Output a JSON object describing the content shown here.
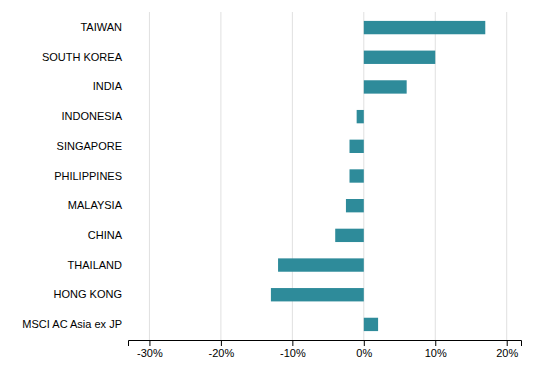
{
  "chart_data": {
    "type": "bar",
    "orientation": "horizontal",
    "categories": [
      "TAIWAN",
      "SOUTH KOREA",
      "INDIA",
      "INDONESIA",
      "SINGAPORE",
      "PHILIPPINES",
      "MALAYSIA",
      "CHINA",
      "THAILAND",
      "HONG KONG",
      "MSCI AC Asia ex JP"
    ],
    "values": [
      17.0,
      10.0,
      6.0,
      -1.0,
      -2.0,
      -2.0,
      -2.5,
      -4.0,
      -12.0,
      -13.0,
      2.0
    ],
    "color": "#2e8b9a",
    "xlim": [
      -33,
      22
    ],
    "xticks": [
      {
        "value": -30,
        "label": "-30%"
      },
      {
        "value": -20,
        "label": "-20%"
      },
      {
        "value": -10,
        "label": "-10%"
      },
      {
        "value": 0,
        "label": "0%"
      },
      {
        "value": 10,
        "label": "10%"
      },
      {
        "value": 20,
        "label": "20%"
      }
    ],
    "grid": true
  }
}
